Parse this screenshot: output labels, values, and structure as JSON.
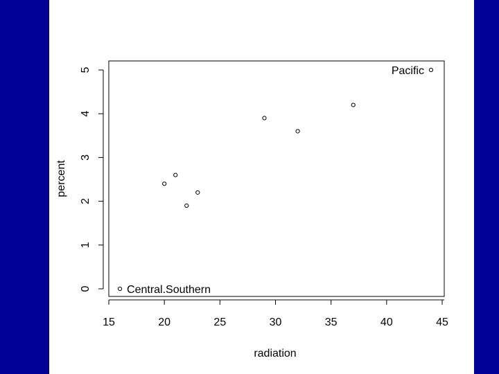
{
  "colors": {
    "frame_band": "#000099",
    "panel": "#ffffff",
    "ink": "#000000"
  },
  "chart_data": {
    "type": "scatter",
    "title": "",
    "xlabel": "radiation",
    "ylabel": "percent",
    "xlim": [
      15,
      45
    ],
    "ylim": [
      0,
      5
    ],
    "x_ticks": [
      15,
      20,
      25,
      30,
      35,
      40,
      45
    ],
    "y_ticks": [
      0,
      1,
      2,
      3,
      4,
      5
    ],
    "marker": "open-circle",
    "grid": false,
    "points": [
      {
        "x": 16,
        "y": 0.0,
        "label": "Central.Southern"
      },
      {
        "x": 20,
        "y": 2.4
      },
      {
        "x": 21,
        "y": 2.6
      },
      {
        "x": 22,
        "y": 1.9
      },
      {
        "x": 23,
        "y": 2.2
      },
      {
        "x": 29,
        "y": 3.9
      },
      {
        "x": 32,
        "y": 3.6
      },
      {
        "x": 37,
        "y": 4.2
      },
      {
        "x": 44,
        "y": 5.0,
        "label": "Pacific"
      }
    ]
  }
}
